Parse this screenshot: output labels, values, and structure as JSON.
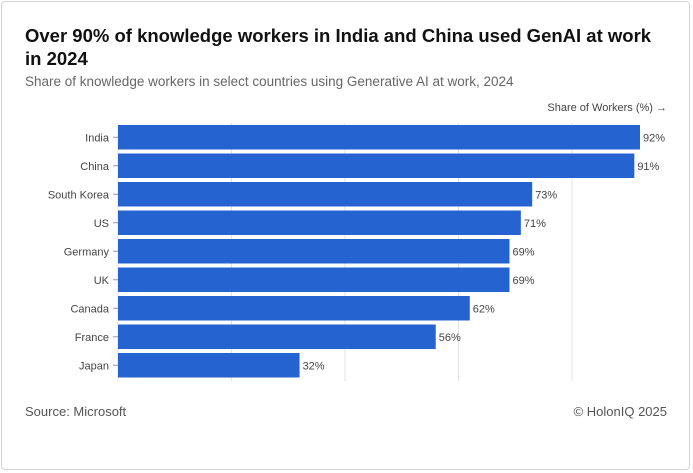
{
  "chart_data": {
    "type": "bar",
    "orientation": "horizontal",
    "title": "Over 90% of knowledge workers in India and China used GenAI at work in 2024",
    "subtitle": "Share of knowledge workers in select countries using Generative AI at work, 2024",
    "xlabel": "Share of Workers (%) →",
    "ylabel": "",
    "categories": [
      "India",
      "China",
      "South Korea",
      "US",
      "Germany",
      "UK",
      "Canada",
      "France",
      "Japan"
    ],
    "values": [
      92,
      91,
      73,
      71,
      69,
      69,
      62,
      56,
      32
    ],
    "value_labels": [
      "92%",
      "91%",
      "73%",
      "71%",
      "69%",
      "69%",
      "62%",
      "56%",
      "32%"
    ],
    "xlim": [
      0,
      92
    ],
    "grid": true,
    "bar_color": "#2563d0"
  },
  "footer": {
    "source": "Source: Microsoft",
    "copyright": "© HolonIQ 2025"
  }
}
